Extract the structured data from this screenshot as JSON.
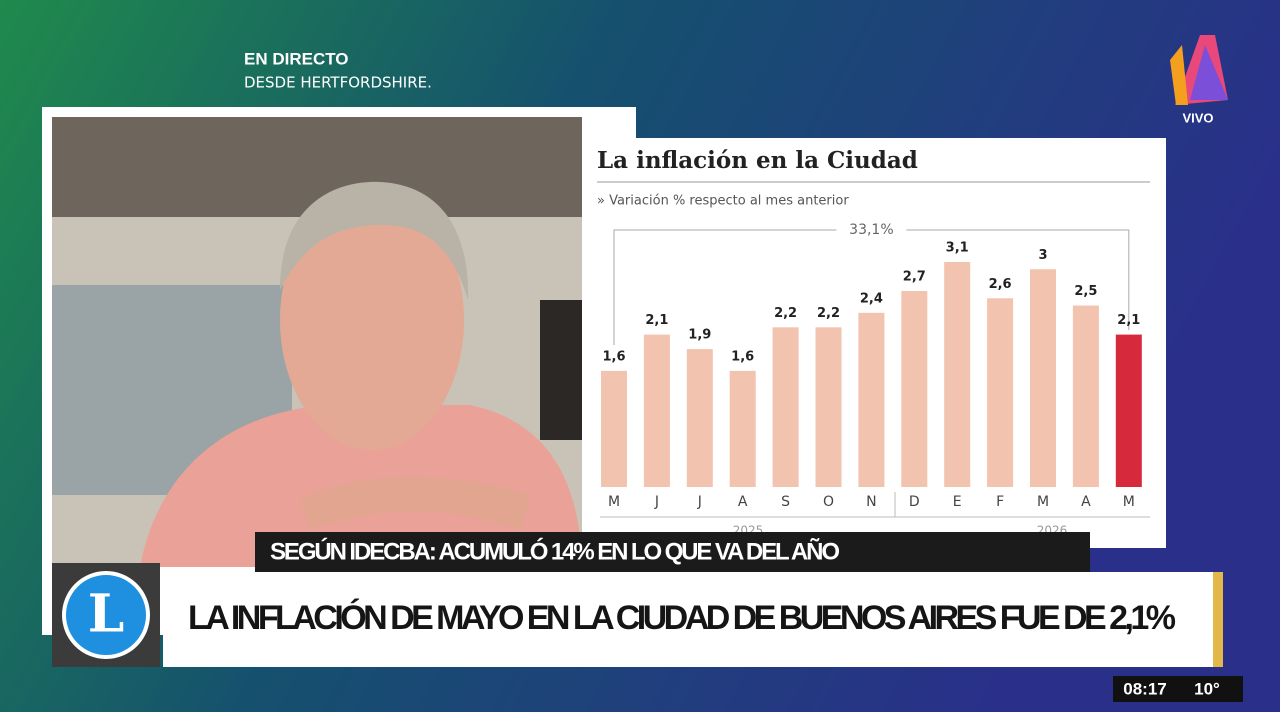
{
  "broadcast": {
    "live": "EN DIRECTO",
    "location": "DESDE HERTFORDSHIRE.",
    "channel_badge": "VIVO",
    "logo": "L",
    "kicker": "SEGÚN IDECBA: ACUMULÓ 14% EN LO QUE VA DEL AÑO",
    "headline": "LA INFLACIÓN DE MAYO EN LA CIUDAD DE BUENOS AIRES FUE DE 2,1%",
    "time": "08:17",
    "temperature": "10°"
  },
  "chart_data": {
    "type": "bar",
    "title": "La inflación en la Ciudad",
    "subtitle": "» Variación % respecto al mes anterior",
    "categories": [
      "M",
      "J",
      "J",
      "A",
      "S",
      "O",
      "N",
      "D",
      "E",
      "F",
      "M",
      "A",
      "M"
    ],
    "values": [
      1.6,
      2.1,
      1.9,
      1.6,
      2.2,
      2.2,
      2.4,
      2.7,
      3.1,
      2.6,
      3,
      2.5,
      2.1
    ],
    "value_labels": [
      "1,6",
      "2,1",
      "1,9",
      "1,6",
      "2,2",
      "2,2",
      "2,4",
      "2,7",
      "3,1",
      "2,6",
      "3",
      "2,5",
      "2,1"
    ],
    "colors": [
      "#f2c3ae",
      "#f2c3ae",
      "#f2c3ae",
      "#f2c3ae",
      "#f2c3ae",
      "#f2c3ae",
      "#f2c3ae",
      "#f2c3ae",
      "#f2c3ae",
      "#f2c3ae",
      "#f2c3ae",
      "#f2c3ae",
      "#d62a3c"
    ],
    "groups": [
      "2025",
      "2026"
    ],
    "annotation": "33,1%"
  }
}
